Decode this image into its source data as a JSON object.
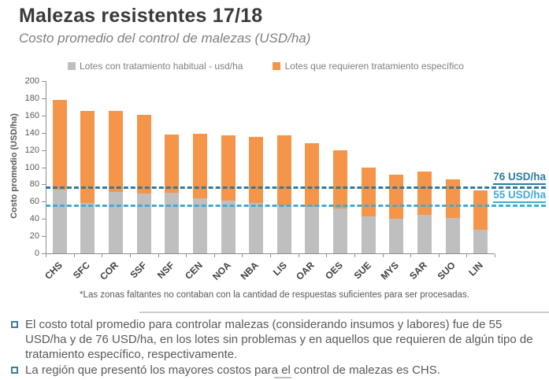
{
  "header": {
    "title": "Malezas resistentes 17/18",
    "subtitle": "Costo promedio del control de malezas (USD/ha)"
  },
  "legend": [
    {
      "label": "Lotes con tratamiento habitual - usd/ha",
      "color": "#bfbfbf"
    },
    {
      "label": "Lotes que requieren tratamiento específico",
      "color": "#f5954a"
    }
  ],
  "chart_data": {
    "type": "bar",
    "stacked": true,
    "title": "",
    "xlabel": "",
    "ylabel": "Costo promedio (USD/ha)",
    "ylim": [
      0,
      200
    ],
    "ytick_step": 20,
    "grid": false,
    "legend_position": "top",
    "categories": [
      "CHS",
      "SFC",
      "COR",
      "SSF",
      "NSF",
      "CEN",
      "NOA",
      "NBA",
      "LIS",
      "OAR",
      "OES",
      "SUE",
      "MYS",
      "SAR",
      "SUO",
      "LIN"
    ],
    "series": [
      {
        "name": "Lotes con tratamiento habitual - usd/ha",
        "color": "#bfbfbf",
        "values": [
          74,
          58,
          71,
          69,
          70,
          64,
          61,
          58,
          56,
          54,
          52,
          43,
          40,
          45,
          41,
          27
        ]
      },
      {
        "name": "Lotes que requieren tratamiento específico",
        "color": "#f5954a",
        "values": [
          104,
          107,
          94,
          91,
          68,
          75,
          76,
          77,
          81,
          74,
          68,
          57,
          51,
          50,
          45,
          46
        ]
      }
    ],
    "totals": [
      178,
      165,
      165,
      160,
      138,
      139,
      137,
      135,
      137,
      128,
      120,
      100,
      91,
      95,
      86,
      73
    ],
    "ref_lines": [
      {
        "value": 76,
        "label": "76 USD/ha",
        "color": "#2b7ca0"
      },
      {
        "value": 55,
        "label": "55 USD/ha",
        "color": "#44aad2"
      }
    ]
  },
  "footnote": "*Las zonas faltantes no contaban  con la cantidad de respuestas suficientes para ser procesadas.",
  "bullets": [
    "El costo total promedio para controlar malezas (considerando insumos y labores) fue de 55 USD/ha y de 76 USD/ha, en los lotes sin problemas y en aquellos que requieren de algún tipo de tratamiento específico, respectivamente.",
    "La región que presentó los mayores costos para el control de malezas es CHS."
  ],
  "colors": {
    "title": "#3a3a3a",
    "subtitle": "#7f7f7f",
    "bar_gray": "#bfbfbf",
    "bar_orange": "#f5954a",
    "ref_dark_teal": "#2b7ca0",
    "ref_light_blue": "#44aad2",
    "axis": "#909090",
    "text": "#595959",
    "bullet_square": "#3d7ca0"
  }
}
